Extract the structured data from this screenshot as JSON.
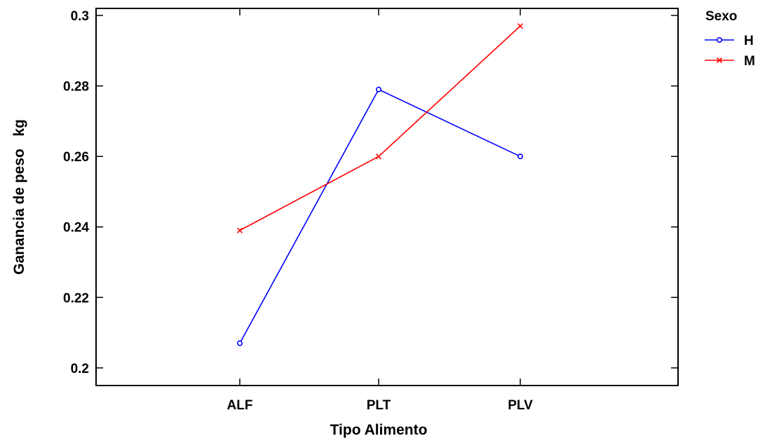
{
  "chart_data": {
    "type": "line",
    "xlabel": "Tipo Alimento",
    "ylabel": "Ganancia de peso   kg",
    "categories": [
      "ALF",
      "PLT",
      "PLV"
    ],
    "ylim": [
      0.195,
      0.302
    ],
    "yticks": [
      0.2,
      0.22,
      0.24,
      0.26,
      0.28,
      0.3
    ],
    "ytick_labels": [
      "0.2",
      "0.22",
      "0.24",
      "0.26",
      "0.28",
      "0.3"
    ],
    "grid": false,
    "legend": {
      "title": "Sexo",
      "placement": "outside-top-right"
    },
    "series": [
      {
        "name": "H",
        "values": [
          0.207,
          0.279,
          0.26
        ],
        "color": "#0000ff",
        "marker": "circle"
      },
      {
        "name": "M",
        "values": [
          0.239,
          0.26,
          0.297
        ],
        "color": "#ff0000",
        "marker": "x"
      }
    ]
  }
}
